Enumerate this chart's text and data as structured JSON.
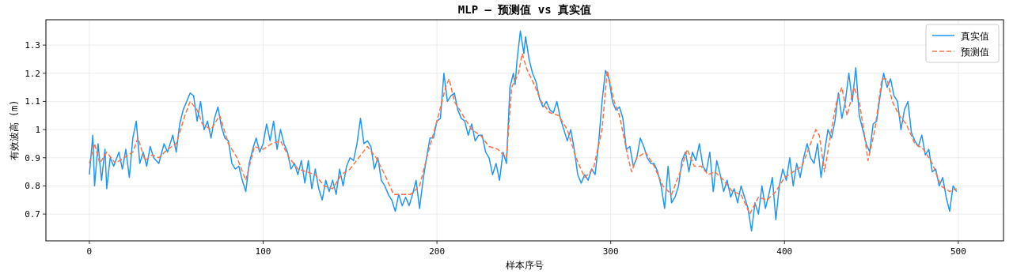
{
  "chart_data": {
    "type": "line",
    "title": "MLP — 预测值 vs 真实值",
    "xlabel": "样本序号",
    "ylabel": "有效波高 (m)",
    "xlim": [
      -25,
      526
    ],
    "ylim": [
      0.605,
      1.39
    ],
    "xticks": [
      0,
      100,
      200,
      300,
      400,
      500
    ],
    "yticks": [
      0.7,
      0.8,
      0.9,
      1.0,
      1.1,
      1.2,
      1.3
    ],
    "grid": true,
    "legend": "top right",
    "marker": "none",
    "series": [
      {
        "name": "真实值",
        "color": "#2196f3",
        "line_style": "solid",
        "x": [
          0,
          2,
          3,
          5,
          7,
          9,
          10,
          12,
          14,
          17,
          19,
          21,
          23,
          25,
          27,
          29,
          31,
          33,
          35,
          37,
          40,
          43,
          45,
          48,
          50,
          52,
          54,
          56,
          58,
          60,
          62,
          64,
          66,
          68,
          70,
          72,
          74,
          76,
          78,
          80,
          82,
          84,
          86,
          88,
          90,
          92,
          94,
          96,
          98,
          100,
          102,
          104,
          106,
          108,
          110,
          112,
          114,
          116,
          118,
          120,
          122,
          124,
          126,
          128,
          130,
          132,
          134,
          136,
          138,
          140,
          142,
          144,
          146,
          148,
          150,
          152,
          154,
          156,
          158,
          160,
          162,
          164,
          166,
          168,
          170,
          172,
          174,
          176,
          178,
          180,
          182,
          184,
          186,
          188,
          190,
          192,
          194,
          196,
          198,
          200,
          202,
          204,
          206,
          208,
          210,
          212,
          214,
          216,
          218,
          220,
          222,
          224,
          226,
          228,
          230,
          232,
          234,
          236,
          238,
          240,
          242,
          244,
          245,
          246,
          248,
          250,
          251,
          253,
          255,
          257,
          259,
          261,
          263,
          265,
          267,
          269,
          271,
          273,
          275,
          277,
          279,
          281,
          283,
          285,
          287,
          289,
          291,
          293,
          295,
          297,
          299,
          301,
          303,
          305,
          307,
          309,
          311,
          313,
          315,
          317,
          319,
          321,
          323,
          325,
          327,
          329,
          331,
          333,
          335,
          337,
          339,
          341,
          343,
          345,
          347,
          349,
          351,
          353,
          355,
          357,
          359,
          361,
          363,
          365,
          367,
          369,
          371,
          373,
          375,
          377,
          379,
          381,
          383,
          385,
          387,
          389,
          391,
          393,
          395,
          397,
          399,
          401,
          403,
          405,
          407,
          409,
          411,
          413,
          415,
          417,
          419,
          421,
          423,
          425,
          427,
          429,
          431,
          433,
          435,
          437,
          439,
          441,
          443,
          445,
          447,
          449,
          451,
          453,
          455,
          457,
          459,
          461,
          463,
          465,
          467,
          469,
          471,
          473,
          475,
          477,
          479,
          481,
          483,
          485,
          487,
          489,
          491,
          493,
          495,
          497,
          499
        ],
        "values": [
          0.84,
          0.98,
          0.8,
          0.95,
          0.82,
          0.93,
          0.79,
          0.9,
          0.87,
          0.92,
          0.86,
          0.93,
          0.83,
          0.97,
          1.03,
          0.88,
          0.92,
          0.87,
          0.94,
          0.9,
          0.88,
          0.95,
          0.92,
          0.98,
          0.92,
          1.02,
          1.07,
          1.1,
          1.13,
          1.12,
          1.03,
          1.1,
          1.0,
          1.03,
          0.97,
          1.04,
          1.08,
          1.01,
          0.97,
          0.96,
          0.88,
          0.86,
          0.87,
          0.82,
          0.78,
          0.88,
          0.93,
          0.97,
          0.92,
          0.95,
          1.02,
          0.96,
          1.03,
          0.93,
          1.0,
          0.95,
          0.92,
          0.86,
          0.88,
          0.84,
          0.89,
          0.81,
          0.89,
          0.79,
          0.86,
          0.79,
          0.75,
          0.82,
          0.78,
          0.82,
          0.77,
          0.86,
          0.8,
          0.87,
          0.9,
          0.89,
          0.95,
          1.04,
          0.95,
          0.96,
          0.94,
          0.86,
          0.9,
          0.82,
          0.8,
          0.77,
          0.75,
          0.71,
          0.77,
          0.73,
          0.76,
          0.73,
          0.77,
          0.82,
          0.72,
          0.82,
          0.9,
          0.97,
          0.97,
          1.03,
          1.04,
          1.2,
          1.1,
          1.12,
          1.13,
          1.07,
          1.04,
          1.03,
          0.98,
          1.02,
          0.96,
          0.98,
          0.98,
          0.92,
          0.9,
          0.84,
          0.88,
          0.82,
          0.92,
          0.88,
          1.15,
          1.2,
          1.16,
          1.24,
          1.35,
          1.27,
          1.33,
          1.25,
          1.2,
          1.17,
          1.11,
          1.08,
          1.1,
          1.07,
          1.06,
          1.1,
          1.04,
          1.0,
          0.96,
          1.0,
          0.93,
          0.84,
          0.81,
          0.84,
          0.82,
          0.86,
          0.84,
          0.95,
          1.1,
          1.21,
          1.18,
          1.1,
          1.07,
          1.08,
          1.04,
          0.93,
          0.94,
          0.87,
          0.9,
          0.97,
          0.94,
          0.9,
          0.88,
          0.88,
          0.85,
          0.8,
          0.72,
          0.87,
          0.74,
          0.76,
          0.8,
          0.89,
          0.92,
          0.85,
          0.92,
          0.89,
          0.95,
          0.87,
          0.85,
          0.92,
          0.78,
          0.89,
          0.84,
          0.78,
          0.82,
          0.76,
          0.79,
          0.74,
          0.8,
          0.76,
          0.72,
          0.64,
          0.74,
          0.7,
          0.8,
          0.72,
          0.77,
          0.83,
          0.68,
          0.8,
          0.86,
          0.82,
          0.9,
          0.8,
          0.88,
          0.83,
          0.9,
          0.95,
          0.9,
          0.88,
          0.95,
          0.83,
          0.92,
          1.0,
          0.97,
          1.03,
          1.13,
          1.04,
          1.1,
          1.2,
          1.1,
          1.22,
          1.05,
          1.0,
          0.95,
          0.92,
          1.02,
          1.03,
          1.12,
          1.2,
          1.15,
          1.18,
          1.12,
          1.1,
          1.0,
          1.07,
          1.1,
          0.99,
          0.96,
          0.94,
          0.98,
          0.91,
          0.93,
          0.85,
          0.86,
          0.8,
          0.83,
          0.76,
          0.71,
          0.8,
          0.78
        ]
      },
      {
        "name": "预测值",
        "color": "#ff7043",
        "line_style": "dashed",
        "x": [
          0,
          3,
          6,
          10,
          15,
          20,
          25,
          28,
          32,
          36,
          40,
          45,
          50,
          55,
          58,
          62,
          65,
          70,
          75,
          80,
          85,
          90,
          95,
          100,
          105,
          110,
          115,
          120,
          125,
          130,
          135,
          140,
          145,
          150,
          155,
          160,
          165,
          170,
          175,
          180,
          185,
          190,
          195,
          200,
          205,
          207,
          210,
          215,
          220,
          225,
          230,
          235,
          240,
          243,
          247,
          249,
          252,
          256,
          260,
          265,
          270,
          275,
          280,
          285,
          290,
          295,
          298,
          302,
          305,
          310,
          312,
          315,
          320,
          325,
          330,
          335,
          340,
          344,
          348,
          352,
          356,
          360,
          365,
          370,
          375,
          380,
          385,
          390,
          395,
          400,
          405,
          410,
          415,
          418,
          420,
          423,
          427,
          430,
          433,
          436,
          440,
          443,
          446,
          448,
          452,
          456,
          459,
          462,
          466,
          470,
          475,
          480,
          485,
          490,
          495,
          499
        ],
        "values": [
          0.88,
          0.95,
          0.88,
          0.92,
          0.88,
          0.9,
          0.92,
          0.97,
          0.89,
          0.91,
          0.9,
          0.93,
          0.95,
          1.05,
          1.1,
          1.07,
          1.02,
          1.0,
          1.05,
          0.95,
          0.9,
          0.82,
          0.94,
          0.93,
          0.95,
          0.96,
          0.9,
          0.86,
          0.85,
          0.84,
          0.8,
          0.79,
          0.84,
          0.86,
          0.9,
          0.94,
          0.9,
          0.84,
          0.77,
          0.77,
          0.77,
          0.8,
          0.92,
          1.03,
          1.15,
          1.18,
          1.1,
          1.05,
          1.0,
          0.98,
          0.94,
          0.93,
          0.9,
          1.15,
          1.2,
          1.27,
          1.21,
          1.16,
          1.1,
          1.06,
          1.05,
          1.0,
          0.9,
          0.83,
          0.86,
          1.0,
          1.21,
          1.1,
          1.05,
          0.9,
          0.85,
          0.9,
          0.92,
          0.87,
          0.8,
          0.77,
          0.85,
          0.93,
          0.87,
          0.87,
          0.84,
          0.85,
          0.82,
          0.78,
          0.77,
          0.7,
          0.76,
          0.75,
          0.78,
          0.83,
          0.85,
          0.87,
          0.95,
          1.0,
          0.98,
          0.85,
          1.0,
          1.1,
          1.15,
          1.05,
          1.15,
          1.1,
          0.98,
          0.89,
          1.0,
          1.18,
          1.18,
          1.1,
          1.05,
          1.02,
          0.95,
          0.93,
          0.88,
          0.8,
          0.78,
          0.79
        ]
      }
    ]
  }
}
